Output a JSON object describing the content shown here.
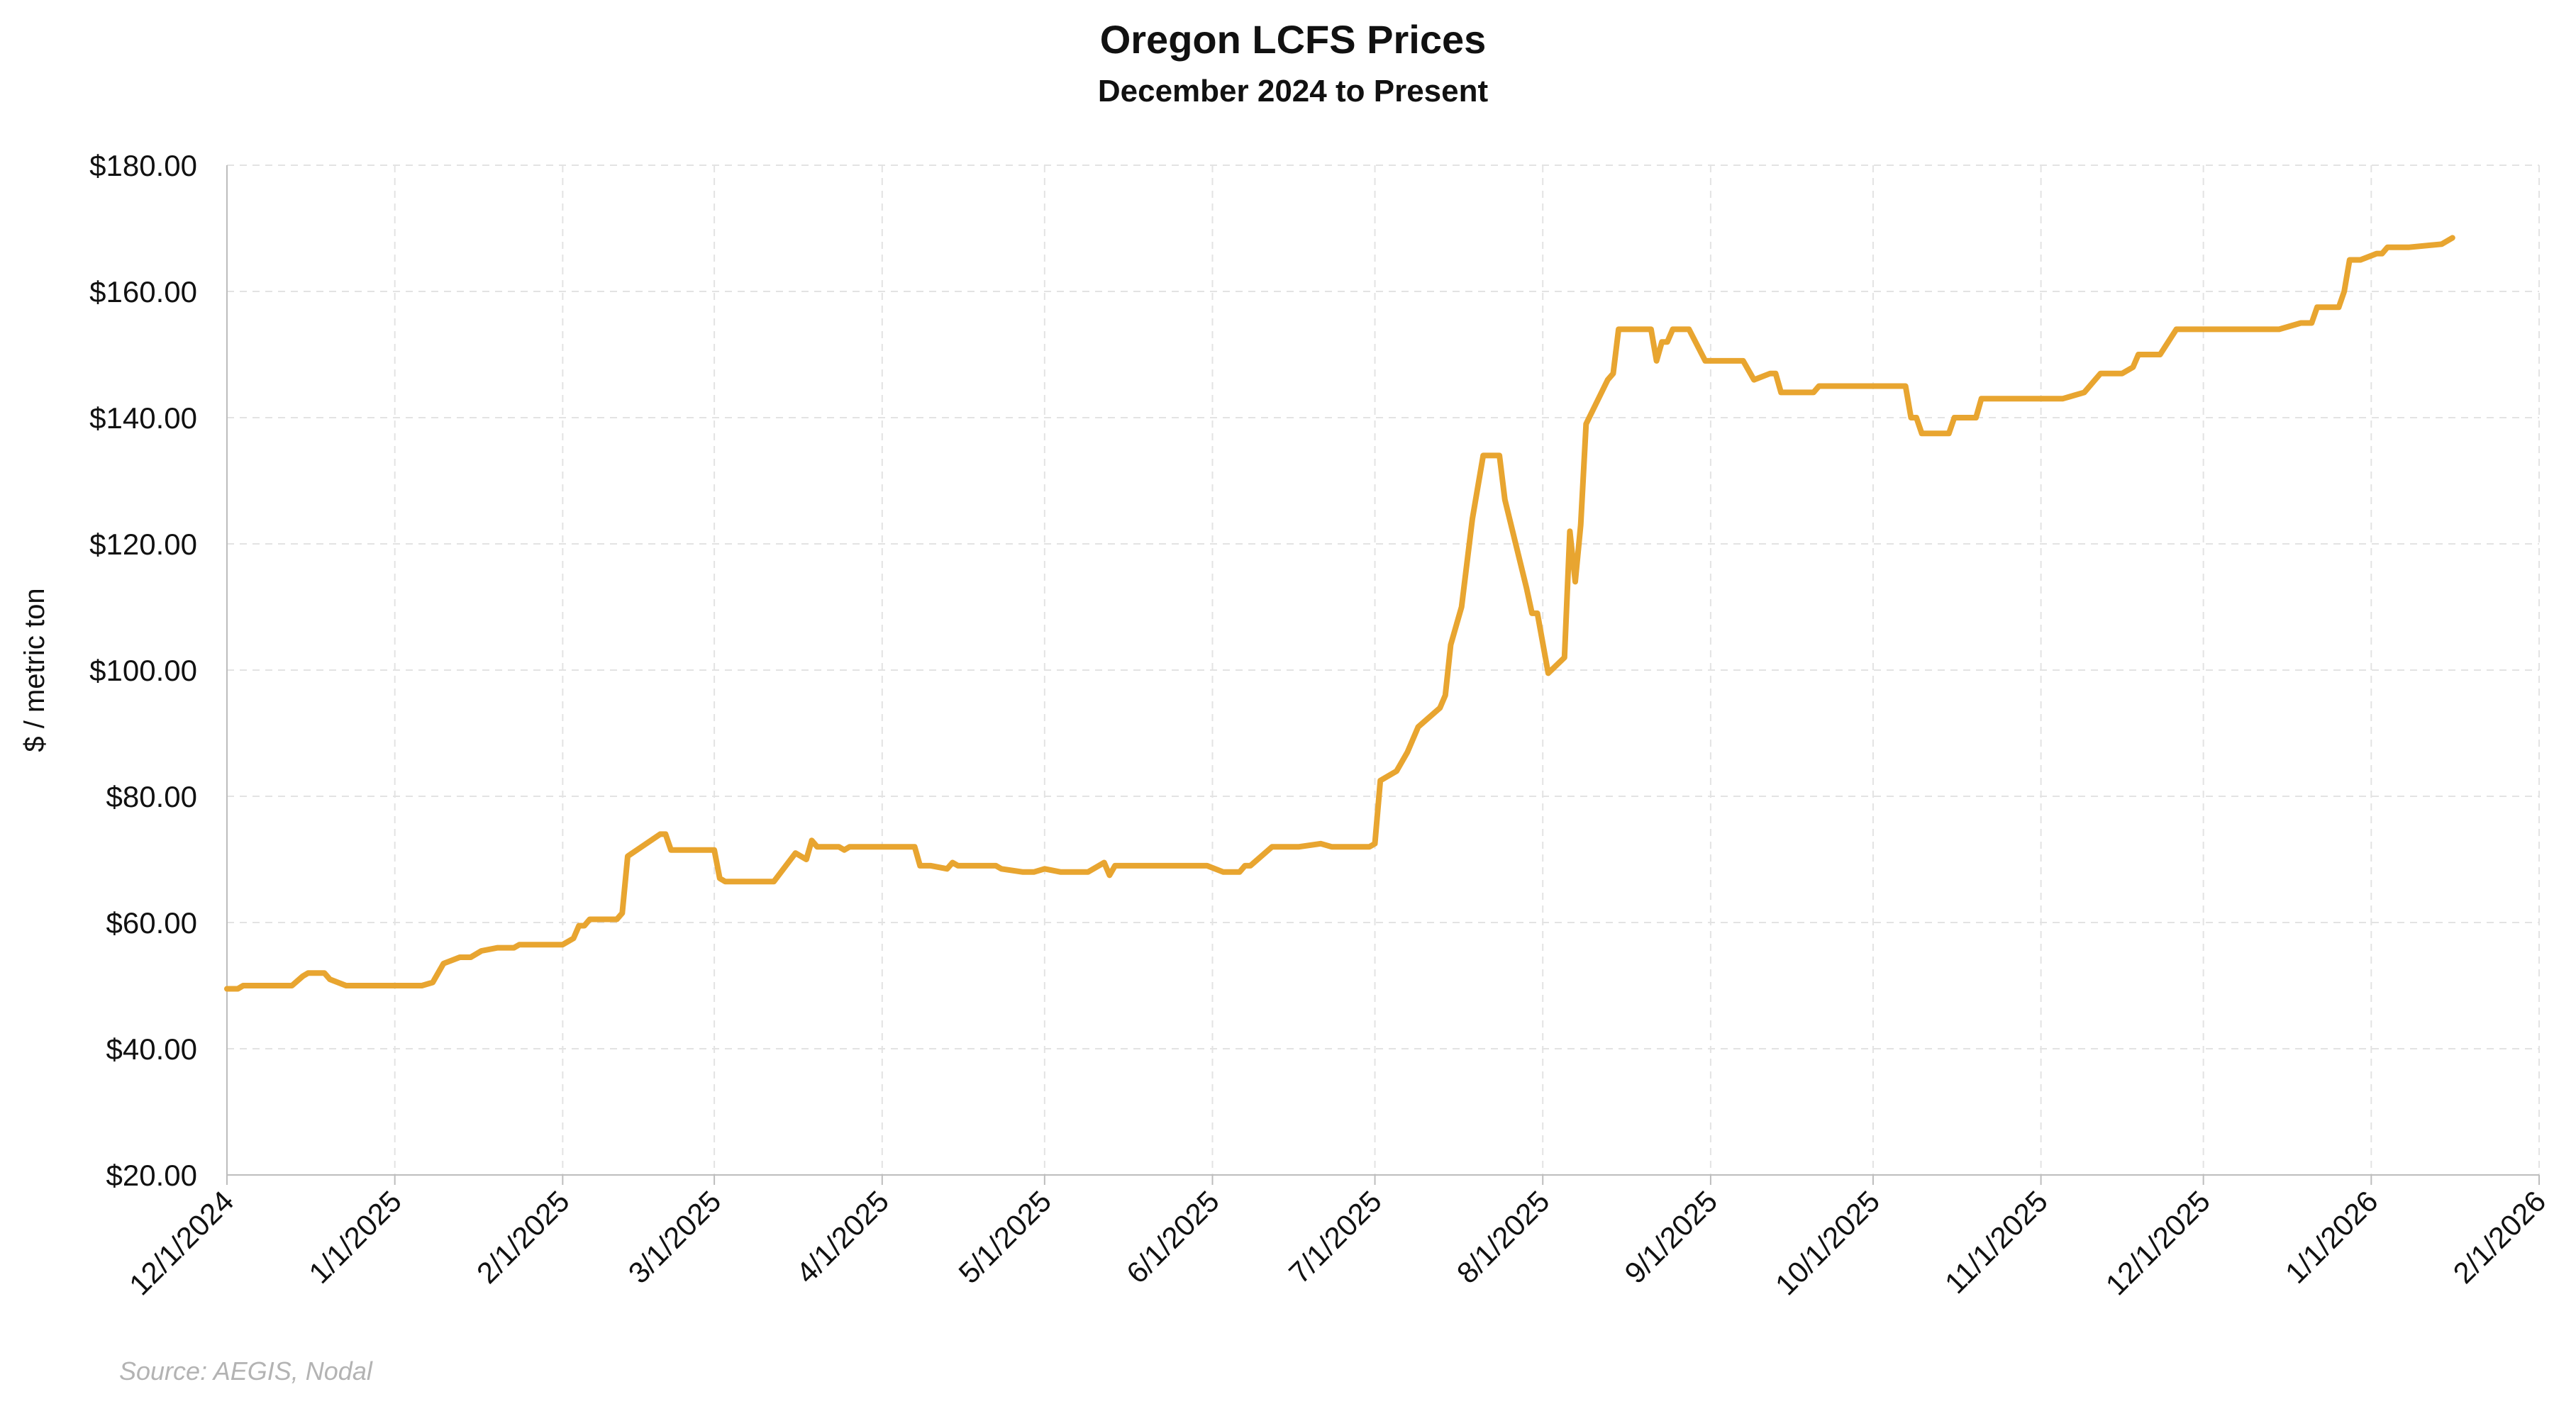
{
  "chart_data": {
    "type": "line",
    "title": "Oregon LCFS Prices",
    "subtitle": "December 2024 to Present",
    "ylabel": "$ / metric ton",
    "xlabel": "",
    "source": "Source: AEGIS, Nodal",
    "line_color": "#E8A530",
    "grid": true,
    "grid_style": "dashed",
    "y_range": [
      20,
      180
    ],
    "x_range": [
      "2024-12-01",
      "2026-02-01"
    ],
    "y_ticks": [
      20,
      40,
      60,
      80,
      100,
      120,
      140,
      160,
      180
    ],
    "y_tick_labels": [
      "$20.00",
      "$40.00",
      "$60.00",
      "$80.00",
      "$100.00",
      "$120.00",
      "$140.00",
      "$160.00",
      "$180.00"
    ],
    "x_ticks": [
      "2024-12-01",
      "2025-01-01",
      "2025-02-01",
      "2025-03-01",
      "2025-04-01",
      "2025-05-01",
      "2025-06-01",
      "2025-07-01",
      "2025-08-01",
      "2025-09-01",
      "2025-10-01",
      "2025-11-01",
      "2025-12-01",
      "2026-01-01",
      "2026-02-01"
    ],
    "x_tick_labels": [
      "12/1/2024",
      "1/1/2025",
      "2/1/2025",
      "3/1/2025",
      "4/1/2025",
      "5/1/2025",
      "6/1/2025",
      "7/1/2025",
      "8/1/2025",
      "9/1/2025",
      "10/1/2025",
      "11/1/2025",
      "12/1/2025",
      "1/1/2026",
      "2/1/2026"
    ],
    "series": [
      {
        "points": [
          [
            "2024-12-01",
            49.5
          ],
          [
            "2024-12-03",
            49.5
          ],
          [
            "2024-12-04",
            50
          ],
          [
            "2024-12-13",
            50
          ],
          [
            "2024-12-15",
            51.5
          ],
          [
            "2024-12-16",
            52
          ],
          [
            "2024-12-19",
            52
          ],
          [
            "2024-12-20",
            51
          ],
          [
            "2024-12-23",
            50
          ],
          [
            "2025-01-01",
            50
          ],
          [
            "2025-01-06",
            50
          ],
          [
            "2025-01-08",
            50.5
          ],
          [
            "2025-01-10",
            53.5
          ],
          [
            "2025-01-13",
            54.5
          ],
          [
            "2025-01-15",
            54.5
          ],
          [
            "2025-01-17",
            55.5
          ],
          [
            "2025-01-20",
            56
          ],
          [
            "2025-01-23",
            56
          ],
          [
            "2025-01-24",
            56.5
          ],
          [
            "2025-02-01",
            56.5
          ],
          [
            "2025-02-03",
            57.5
          ],
          [
            "2025-02-04",
            59.5
          ],
          [
            "2025-02-05",
            59.5
          ],
          [
            "2025-02-06",
            60.5
          ],
          [
            "2025-02-11",
            60.5
          ],
          [
            "2025-02-12",
            61.5
          ],
          [
            "2025-02-13",
            70.5
          ],
          [
            "2025-02-19",
            74
          ],
          [
            "2025-02-20",
            74
          ],
          [
            "2025-02-21",
            71.5
          ],
          [
            "2025-03-01",
            71.5
          ],
          [
            "2025-03-02",
            67
          ],
          [
            "2025-03-03",
            66.5
          ],
          [
            "2025-03-12",
            66.5
          ],
          [
            "2025-03-16",
            71
          ],
          [
            "2025-03-18",
            70
          ],
          [
            "2025-03-19",
            73
          ],
          [
            "2025-03-20",
            72
          ],
          [
            "2025-03-24",
            72
          ],
          [
            "2025-03-25",
            71.5
          ],
          [
            "2025-03-26",
            72
          ],
          [
            "2025-04-07",
            72
          ],
          [
            "2025-04-08",
            69
          ],
          [
            "2025-04-10",
            69
          ],
          [
            "2025-04-13",
            68.5
          ],
          [
            "2025-04-14",
            69.5
          ],
          [
            "2025-04-15",
            69
          ],
          [
            "2025-04-22",
            69
          ],
          [
            "2025-04-23",
            68.5
          ],
          [
            "2025-04-27",
            68
          ],
          [
            "2025-04-29",
            68
          ],
          [
            "2025-05-01",
            68.5
          ],
          [
            "2025-05-04",
            68
          ],
          [
            "2025-05-09",
            68
          ],
          [
            "2025-05-12",
            69.5
          ],
          [
            "2025-05-13",
            67.5
          ],
          [
            "2025-05-14",
            69
          ],
          [
            "2025-05-31",
            69
          ],
          [
            "2025-06-03",
            68
          ],
          [
            "2025-06-06",
            68
          ],
          [
            "2025-06-07",
            69
          ],
          [
            "2025-06-08",
            69
          ],
          [
            "2025-06-12",
            72
          ],
          [
            "2025-06-17",
            72
          ],
          [
            "2025-06-21",
            72.5
          ],
          [
            "2025-06-23",
            72
          ],
          [
            "2025-06-30",
            72
          ],
          [
            "2025-07-01",
            72.5
          ],
          [
            "2025-07-02",
            82.5
          ],
          [
            "2025-07-05",
            84
          ],
          [
            "2025-07-07",
            87
          ],
          [
            "2025-07-09",
            91
          ],
          [
            "2025-07-13",
            94
          ],
          [
            "2025-07-14",
            96
          ],
          [
            "2025-07-15",
            104
          ],
          [
            "2025-07-17",
            110
          ],
          [
            "2025-07-19",
            124
          ],
          [
            "2025-07-21",
            134
          ],
          [
            "2025-07-24",
            134
          ],
          [
            "2025-07-25",
            127
          ],
          [
            "2025-07-29",
            113
          ],
          [
            "2025-07-30",
            109
          ],
          [
            "2025-07-31",
            109
          ],
          [
            "2025-08-02",
            99.5
          ],
          [
            "2025-08-05",
            102
          ],
          [
            "2025-08-06",
            122
          ],
          [
            "2025-08-07",
            114
          ],
          [
            "2025-08-08",
            123
          ],
          [
            "2025-08-09",
            139
          ],
          [
            "2025-08-13",
            146
          ],
          [
            "2025-08-14",
            147
          ],
          [
            "2025-08-15",
            154
          ],
          [
            "2025-08-21",
            154
          ],
          [
            "2025-08-22",
            149
          ],
          [
            "2025-08-23",
            152
          ],
          [
            "2025-08-24",
            152
          ],
          [
            "2025-08-25",
            154
          ],
          [
            "2025-08-28",
            154
          ],
          [
            "2025-08-31",
            149
          ],
          [
            "2025-09-06",
            149
          ],
          [
            "2025-09-07",
            149
          ],
          [
            "2025-09-09",
            146
          ],
          [
            "2025-09-12",
            147
          ],
          [
            "2025-09-13",
            147
          ],
          [
            "2025-09-14",
            144
          ],
          [
            "2025-09-20",
            144
          ],
          [
            "2025-09-21",
            145
          ],
          [
            "2025-10-07",
            145
          ],
          [
            "2025-10-08",
            140
          ],
          [
            "2025-10-09",
            140
          ],
          [
            "2025-10-10",
            137.5
          ],
          [
            "2025-10-15",
            137.5
          ],
          [
            "2025-10-16",
            140
          ],
          [
            "2025-10-20",
            140
          ],
          [
            "2025-10-21",
            143
          ],
          [
            "2025-11-05",
            143
          ],
          [
            "2025-11-07",
            143.5
          ],
          [
            "2025-11-09",
            144
          ],
          [
            "2025-11-12",
            147
          ],
          [
            "2025-11-16",
            147
          ],
          [
            "2025-11-18",
            148
          ],
          [
            "2025-11-19",
            150
          ],
          [
            "2025-11-23",
            150
          ],
          [
            "2025-11-26",
            154
          ],
          [
            "2025-12-05",
            154
          ],
          [
            "2025-12-15",
            154
          ],
          [
            "2025-12-19",
            155
          ],
          [
            "2025-12-21",
            155
          ],
          [
            "2025-12-22",
            157.5
          ],
          [
            "2025-12-26",
            157.5
          ],
          [
            "2025-12-27",
            160
          ],
          [
            "2025-12-28",
            165
          ],
          [
            "2025-12-30",
            165
          ],
          [
            "2026-01-02",
            166
          ],
          [
            "2026-01-03",
            166
          ],
          [
            "2026-01-04",
            167
          ],
          [
            "2026-01-08",
            167
          ],
          [
            "2026-01-14",
            167.5
          ],
          [
            "2026-01-16",
            168.5
          ]
        ]
      }
    ]
  }
}
